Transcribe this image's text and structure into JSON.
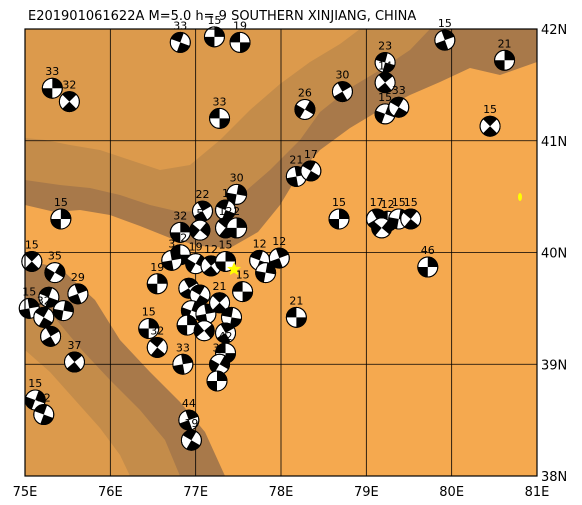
{
  "title": "E201901061622A  M=5.0 h=  9 SOUTHERN XINJIANG, CHINA",
  "extent": {
    "lon_min": 75,
    "lon_max": 81,
    "lat_min": 38,
    "lat_max": 42
  },
  "lon_labels": [
    "75E",
    "76E",
    "77E",
    "78E",
    "79E",
    "80E",
    "81E"
  ],
  "lat_labels": [
    "42N",
    "41N",
    "40N",
    "39N",
    "38N"
  ],
  "colors": {
    "basin": "#f5a94f",
    "mountain_dark": "#a8794a",
    "mountain_mid": "#c48c4a",
    "mountain_light": "#dc9a4c",
    "compressional": "#ffffff",
    "tensional": "#000000",
    "epicenter": "#ffff00",
    "grid": "#000000"
  },
  "epicenter": {
    "lon": 77.45,
    "lat": 39.85,
    "symbol": "yellow-star"
  },
  "mechanisms": [
    {
      "lon": 76.82,
      "lat": 41.88,
      "depth": "33",
      "az": 20
    },
    {
      "lon": 77.22,
      "lat": 41.93,
      "depth": "15",
      "az": 90
    },
    {
      "lon": 77.52,
      "lat": 41.88,
      "depth": "19",
      "az": 0
    },
    {
      "lon": 75.32,
      "lat": 41.47,
      "depth": "33",
      "az": 90
    },
    {
      "lon": 75.52,
      "lat": 41.35,
      "depth": "32",
      "az": 45
    },
    {
      "lon": 77.28,
      "lat": 41.2,
      "depth": "33",
      "az": 0
    },
    {
      "lon": 78.28,
      "lat": 41.28,
      "depth": "26",
      "az": 120
    },
    {
      "lon": 78.72,
      "lat": 41.44,
      "depth": "30",
      "az": 60
    },
    {
      "lon": 79.22,
      "lat": 41.7,
      "depth": "23",
      "az": 15
    },
    {
      "lon": 79.22,
      "lat": 41.52,
      "depth": "14",
      "az": 50
    },
    {
      "lon": 79.22,
      "lat": 41.24,
      "depth": "15",
      "az": 110
    },
    {
      "lon": 79.38,
      "lat": 41.3,
      "depth": "33",
      "az": 30
    },
    {
      "lon": 79.92,
      "lat": 41.9,
      "depth": "15",
      "az": 70
    },
    {
      "lon": 80.62,
      "lat": 41.72,
      "depth": "21",
      "az": 90
    },
    {
      "lon": 80.45,
      "lat": 41.13,
      "depth": "15",
      "az": 45
    },
    {
      "lon": 78.18,
      "lat": 40.68,
      "depth": "21",
      "az": 80
    },
    {
      "lon": 78.35,
      "lat": 40.73,
      "depth": "17",
      "az": 30
    },
    {
      "lon": 77.48,
      "lat": 40.52,
      "depth": "30",
      "az": 100
    },
    {
      "lon": 77.08,
      "lat": 40.37,
      "depth": "22",
      "az": 60
    },
    {
      "lon": 77.35,
      "lat": 40.38,
      "depth": "1",
      "az": 20
    },
    {
      "lon": 76.82,
      "lat": 40.18,
      "depth": "32",
      "az": 90
    },
    {
      "lon": 77.05,
      "lat": 40.2,
      "depth": "5",
      "az": 130
    },
    {
      "lon": 77.35,
      "lat": 40.22,
      "depth": "12",
      "az": 40
    },
    {
      "lon": 77.48,
      "lat": 40.22,
      "depth": "2",
      "az": 90
    },
    {
      "lon": 76.82,
      "lat": 39.98,
      "depth": "22",
      "az": 0
    },
    {
      "lon": 76.72,
      "lat": 39.93,
      "depth": "3",
      "az": 80
    },
    {
      "lon": 77.0,
      "lat": 39.9,
      "depth": "19",
      "az": 120
    },
    {
      "lon": 77.18,
      "lat": 39.88,
      "depth": "12",
      "az": 50
    },
    {
      "lon": 77.35,
      "lat": 39.92,
      "depth": "15",
      "az": 90
    },
    {
      "lon": 77.75,
      "lat": 39.93,
      "depth": "12",
      "az": 20
    },
    {
      "lon": 77.98,
      "lat": 39.95,
      "depth": "12",
      "az": 70
    },
    {
      "lon": 77.82,
      "lat": 39.82,
      "depth": "",
      "az": 100
    },
    {
      "lon": 77.55,
      "lat": 39.65,
      "depth": "15",
      "az": 0
    },
    {
      "lon": 76.55,
      "lat": 39.72,
      "depth": "19",
      "az": 90
    },
    {
      "lon": 76.92,
      "lat": 39.68,
      "depth": "",
      "az": 60
    },
    {
      "lon": 77.05,
      "lat": 39.62,
      "depth": "",
      "az": 30
    },
    {
      "lon": 76.95,
      "lat": 39.48,
      "depth": "",
      "az": 110
    },
    {
      "lon": 77.12,
      "lat": 39.45,
      "depth": "",
      "az": 80
    },
    {
      "lon": 77.28,
      "lat": 39.55,
      "depth": "21",
      "az": 45
    },
    {
      "lon": 77.42,
      "lat": 39.42,
      "depth": "",
      "az": 10
    },
    {
      "lon": 76.9,
      "lat": 39.35,
      "depth": "",
      "az": 90
    },
    {
      "lon": 77.1,
      "lat": 39.3,
      "depth": "",
      "az": 140
    },
    {
      "lon": 77.35,
      "lat": 39.28,
      "depth": "",
      "az": 60
    },
    {
      "lon": 78.18,
      "lat": 39.42,
      "depth": "21",
      "az": 0
    },
    {
      "lon": 75.42,
      "lat": 40.3,
      "depth": "15",
      "az": 90
    },
    {
      "lon": 75.08,
      "lat": 39.92,
      "depth": "15",
      "az": 45
    },
    {
      "lon": 75.35,
      "lat": 39.82,
      "depth": "35",
      "az": 120
    },
    {
      "lon": 75.28,
      "lat": 39.6,
      "depth": "",
      "az": 20
    },
    {
      "lon": 75.62,
      "lat": 39.63,
      "depth": "29",
      "az": 70
    },
    {
      "lon": 75.05,
      "lat": 39.5,
      "depth": "15",
      "az": 80
    },
    {
      "lon": 75.22,
      "lat": 39.42,
      "depth": "32",
      "az": 30
    },
    {
      "lon": 75.45,
      "lat": 39.48,
      "depth": "",
      "az": 100
    },
    {
      "lon": 75.3,
      "lat": 39.25,
      "depth": "",
      "az": 60
    },
    {
      "lon": 76.45,
      "lat": 39.32,
      "depth": "15",
      "az": 90
    },
    {
      "lon": 76.55,
      "lat": 39.15,
      "depth": "32",
      "az": 40
    },
    {
      "lon": 77.35,
      "lat": 39.1,
      "depth": "42",
      "az": 0
    },
    {
      "lon": 77.28,
      "lat": 39.0,
      "depth": "33",
      "az": 120
    },
    {
      "lon": 76.85,
      "lat": 39.0,
      "depth": "33",
      "az": 80
    },
    {
      "lon": 75.58,
      "lat": 39.02,
      "depth": "37",
      "az": 50
    },
    {
      "lon": 77.25,
      "lat": 38.85,
      "depth": "",
      "az": 90
    },
    {
      "lon": 75.12,
      "lat": 38.68,
      "depth": "15",
      "az": 110
    },
    {
      "lon": 75.22,
      "lat": 38.55,
      "depth": "32",
      "az": 20
    },
    {
      "lon": 76.92,
      "lat": 38.5,
      "depth": "44",
      "az": 70
    },
    {
      "lon": 76.95,
      "lat": 38.32,
      "depth": "19",
      "az": 30
    },
    {
      "lon": 78.68,
      "lat": 40.3,
      "depth": "15",
      "az": 90
    },
    {
      "lon": 79.12,
      "lat": 40.3,
      "depth": "17",
      "az": 60
    },
    {
      "lon": 79.25,
      "lat": 40.28,
      "depth": "12",
      "az": 0
    },
    {
      "lon": 79.38,
      "lat": 40.3,
      "depth": "15",
      "az": 100
    },
    {
      "lon": 79.52,
      "lat": 40.3,
      "depth": "15",
      "az": 40
    },
    {
      "lon": 79.18,
      "lat": 40.22,
      "depth": "",
      "az": 130
    },
    {
      "lon": 79.72,
      "lat": 39.87,
      "depth": "46",
      "az": 90
    }
  ]
}
